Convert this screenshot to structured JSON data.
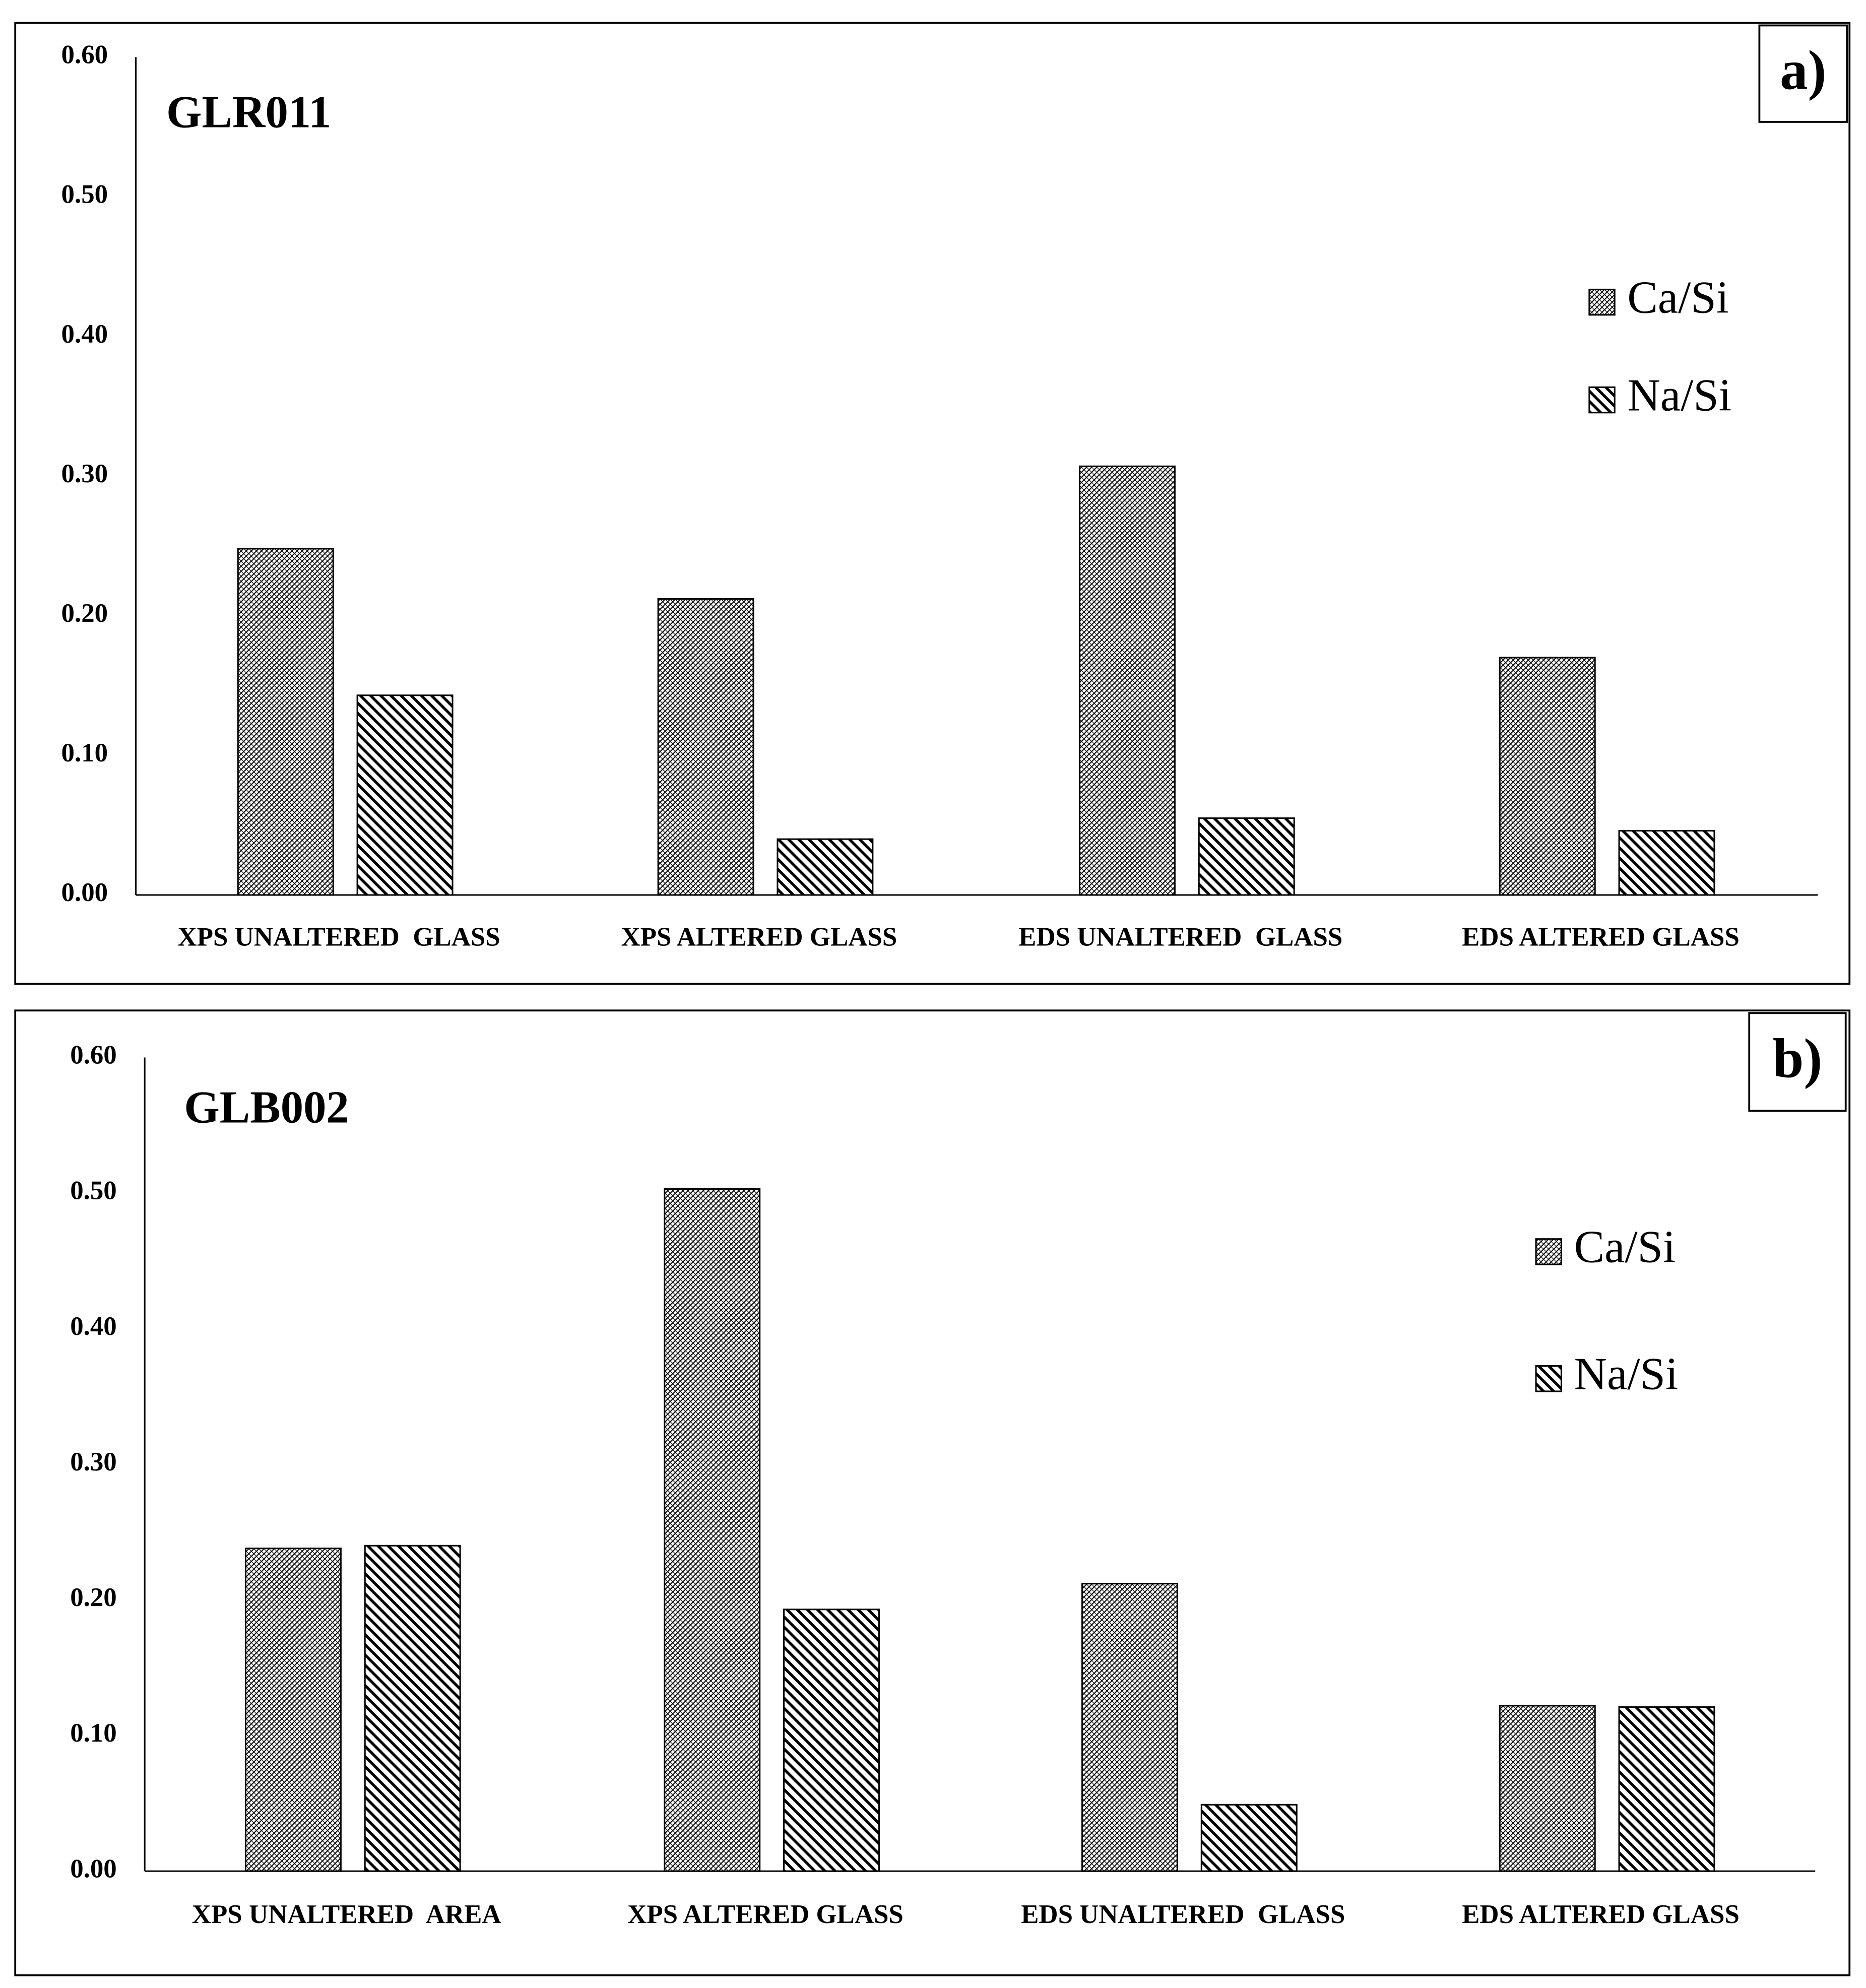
{
  "chart_data": [
    {
      "type": "bar",
      "title": "GLR011",
      "panel_label": "a)",
      "categories": [
        "XPS UNALTERED  GLASS",
        "XPS ALTERED GLASS",
        "EDS UNALTERED  GLASS",
        "EDS ALTERED GLASS"
      ],
      "series": [
        {
          "name": "Ca/Si",
          "color": "#000000",
          "hatch": "dense",
          "values": [
            0.248,
            0.212,
            0.307,
            0.17
          ]
        },
        {
          "name": "Na/Si",
          "color": "#000000",
          "hatch": "diagonal",
          "values": [
            0.143,
            0.04,
            0.055,
            0.046
          ]
        }
      ],
      "ylim": [
        0,
        0.6
      ],
      "yticks": [
        {
          "value": 0,
          "label": "0.00"
        },
        {
          "value": 0.1,
          "label": "0.10"
        },
        {
          "value": 0.2,
          "label": "0.20"
        },
        {
          "value": 0.3,
          "label": "0.30"
        },
        {
          "value": 0.4,
          "label": "0.40"
        },
        {
          "value": 0.5,
          "label": "0.50"
        },
        {
          "value": 0.6,
          "label": "0.60"
        }
      ],
      "grid": false,
      "legend": "right"
    },
    {
      "type": "bar",
      "title": "GLB002",
      "panel_label": "b)",
      "categories": [
        "XPS UNALTERED  AREA",
        "XPS ALTERED GLASS",
        "EDS UNALTERED  GLASS",
        "EDS ALTERED GLASS"
      ],
      "series": [
        {
          "name": "Ca/Si",
          "color": "#000000",
          "hatch": "dense",
          "values": [
            0.238,
            0.503,
            0.212,
            0.122
          ]
        },
        {
          "name": "Na/Si",
          "color": "#000000",
          "hatch": "diagonal",
          "values": [
            0.24,
            0.193,
            0.049,
            0.121
          ]
        }
      ],
      "ylim": [
        0,
        0.6
      ],
      "yticks": [
        {
          "value": 0,
          "label": "0.00"
        },
        {
          "value": 0.1,
          "label": "0.10"
        },
        {
          "value": 0.2,
          "label": "0.20"
        },
        {
          "value": 0.3,
          "label": "0.30"
        },
        {
          "value": 0.4,
          "label": "0.40"
        },
        {
          "value": 0.5,
          "label": "0.50"
        },
        {
          "value": 0.6,
          "label": "0.60"
        }
      ],
      "grid": false,
      "legend": "right"
    }
  ]
}
